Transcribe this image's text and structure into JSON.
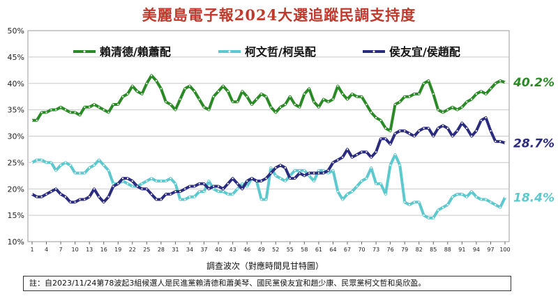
{
  "title": "美麗島電子報2024大選追蹤民調支持度",
  "note": "註：自2023/11/24第78波起3組候選人是民進黨賴清德和蕭美琴、國民黨侯友宜和趙少康、民眾黨柯文哲和吳欣盈。",
  "colors": {
    "green": "#2a8a25",
    "cyan": "#5cc9cf",
    "navy": "#2b2b80"
  },
  "chart_data": {
    "type": "line",
    "title": "美麗島電子報2024大選追蹤民調支持度",
    "xlabel": "調查波次（對應時間見甘特圖）",
    "ylabel": "",
    "ylim": [
      10,
      50
    ],
    "grid": true,
    "legend": "top",
    "y_ticks": [
      "10%",
      "15%",
      "20%",
      "25%",
      "30%",
      "35%",
      "40%",
      "45%",
      "50%"
    ],
    "x_ticks": [
      1,
      4,
      7,
      10,
      13,
      16,
      19,
      22,
      25,
      28,
      31,
      34,
      37,
      40,
      43,
      46,
      49,
      52,
      55,
      58,
      61,
      64,
      67,
      70,
      73,
      76,
      79,
      82,
      85,
      88,
      91,
      94,
      97,
      100
    ],
    "series": [
      {
        "name": "賴清德/賴蕭配",
        "end_label": "40.2%",
        "values": [
          33,
          33,
          34.5,
          34.5,
          35,
          35,
          35.5,
          35,
          34.5,
          34.5,
          34,
          35.5,
          35.5,
          36,
          35.5,
          35,
          34.5,
          36,
          36,
          37.5,
          38,
          39.5,
          38.5,
          38,
          40,
          41.5,
          40.5,
          39,
          36.5,
          36,
          35,
          37,
          39,
          39.5,
          38.5,
          37,
          35.5,
          35,
          37.5,
          38.5,
          39.5,
          38.5,
          36.5,
          36.5,
          38.5,
          37.5,
          36,
          37,
          38,
          37.5,
          35.5,
          34.5,
          35.5,
          36,
          37.5,
          36,
          35.5,
          38,
          39,
          36.5,
          35.5,
          37,
          36.5,
          37,
          39.5,
          38,
          37,
          38,
          37.5,
          37.5,
          36,
          34.5,
          33.5,
          33,
          31.5,
          31,
          36,
          36.5,
          37.5,
          37.5,
          38,
          38,
          40,
          40.5,
          38,
          35,
          34.5,
          35,
          35.5,
          35,
          35.5,
          36.5,
          37,
          38,
          38.5,
          38,
          39,
          40,
          40.5,
          40.2
        ]
      },
      {
        "name": "柯文哲/柯吳配",
        "end_label": "18.4%",
        "values": [
          25,
          25.5,
          25.5,
          25,
          25,
          23.5,
          24.5,
          25,
          24.5,
          23,
          23,
          23,
          24,
          24.5,
          25.5,
          24.5,
          23.5,
          21,
          21,
          21.5,
          21,
          20.5,
          20.5,
          21,
          21.5,
          22,
          21.5,
          21.5,
          21.5,
          22,
          21,
          18,
          18,
          18.5,
          18.5,
          19.5,
          19.5,
          21.5,
          20,
          19.5,
          19.5,
          19,
          19,
          20,
          21,
          20.5,
          22,
          21.5,
          18,
          18,
          24,
          22.5,
          22,
          21.5,
          22.5,
          23.5,
          23.5,
          23.5,
          22.5,
          21.5,
          23.5,
          23.5,
          23,
          23.5,
          19.5,
          18,
          19,
          19.5,
          20.5,
          21.5,
          22,
          24,
          21,
          21,
          19,
          24.5,
          26.5,
          24.5,
          17.5,
          17,
          17.5,
          17.5,
          15,
          14.5,
          14.5,
          16,
          16.5,
          17,
          18.5,
          19,
          19,
          18.5,
          19.5,
          18.5,
          18,
          18,
          17.5,
          17,
          16.5,
          18.4
        ]
      },
      {
        "name": "侯友宜/侯趙配",
        "end_label": "28.7%",
        "values": [
          19,
          18.5,
          18.5,
          19,
          19.5,
          20,
          19,
          18.5,
          17.5,
          17.5,
          18,
          18,
          18.5,
          20,
          18.5,
          17.5,
          18.5,
          20.5,
          21,
          22,
          22,
          21.5,
          20.5,
          20,
          20,
          19,
          18,
          18,
          19,
          19,
          19.5,
          19.5,
          20,
          20.5,
          20.5,
          21,
          21,
          20,
          20.5,
          20.5,
          20,
          21,
          22,
          21,
          20,
          21.5,
          22,
          21.5,
          21.5,
          22,
          23,
          24,
          24.5,
          24,
          22,
          22,
          23,
          22.5,
          23,
          23,
          23,
          23,
          23.5,
          25,
          25.5,
          26,
          27.5,
          26,
          26.5,
          27,
          27,
          26,
          27,
          29.5,
          29.5,
          28.5,
          30.5,
          31,
          31,
          30.5,
          30,
          31,
          31.5,
          31.5,
          30,
          31.5,
          32,
          31.5,
          30,
          31,
          32.5,
          31.5,
          30,
          31,
          33,
          33.5,
          31,
          29,
          29,
          28.7
        ]
      }
    ]
  }
}
